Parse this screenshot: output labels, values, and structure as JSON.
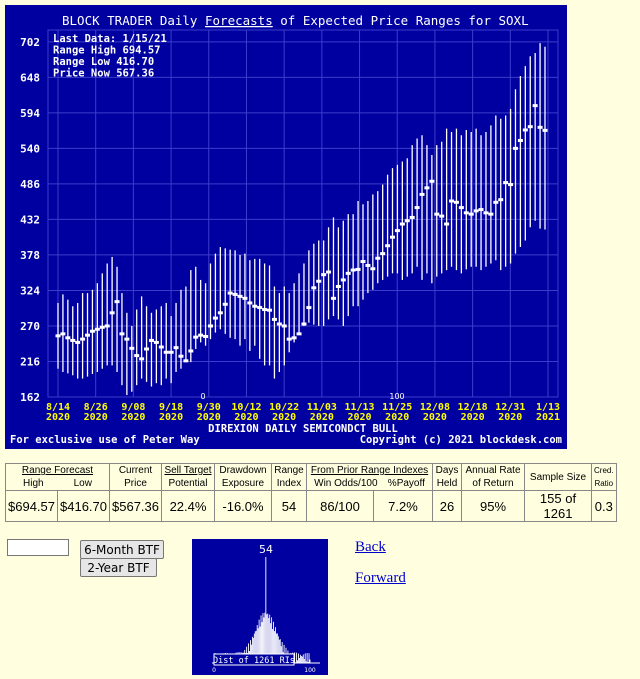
{
  "chart": {
    "title": "BLOCK TRADER Daily Forecasts of Expected Price Ranges for  SOXL",
    "title_prefix": "BLOCK TRADER Daily ",
    "title_link": "Forecasts",
    "title_suffix": " of Expected Price Ranges for  SOXL",
    "stats": [
      {
        "label": "Last Data:",
        "value": "1/15/21"
      },
      {
        "label": "Range High",
        "value": "694.57"
      },
      {
        "label": "Range Low ",
        "value": "416.70"
      },
      {
        "label": "Price Now ",
        "value": "567.36"
      }
    ],
    "subtitle": "DIREXION DAILY SEMICONDCT BULL",
    "footer_left": "For exclusive use of Peter Way",
    "footer_right": "Copyright (c) 2021 blockdesk.com",
    "marker_low": "0",
    "marker_high": "100",
    "colors": {
      "panel": "#0000a0",
      "text": "#ffffff",
      "grid": "#3c3ccc",
      "axis": "#ffff00"
    }
  },
  "chart_data": {
    "type": "range-bar",
    "ylim": [
      162,
      720
    ],
    "yticks": [
      162,
      216,
      270,
      324,
      378,
      432,
      486,
      540,
      594,
      648,
      702
    ],
    "x_tick_labels": [
      [
        "8/14",
        "2020"
      ],
      [
        "8/26",
        "2020"
      ],
      [
        "9/08",
        "2020"
      ],
      [
        "9/18",
        "2020"
      ],
      [
        "9/30",
        "2020"
      ],
      [
        "10/12",
        "2020"
      ],
      [
        "10/22",
        "2020"
      ],
      [
        "11/03",
        "2020"
      ],
      [
        "11/13",
        "2020"
      ],
      [
        "11/25",
        "2020"
      ],
      [
        "12/08",
        "2020"
      ],
      [
        "12/18",
        "2020"
      ],
      [
        "12/31",
        "2020"
      ],
      [
        "1/13",
        "2021"
      ]
    ],
    "series": [
      {
        "name": "Range High",
        "values": [
          305,
          318,
          310,
          300,
          305,
          320,
          320,
          325,
          335,
          350,
          365,
          375,
          360,
          320,
          290,
          270,
          295,
          315,
          300,
          290,
          295,
          300,
          305,
          285,
          305,
          325,
          330,
          355,
          360,
          340,
          335,
          365,
          380,
          390,
          388,
          386,
          385,
          378,
          380,
          370,
          372,
          372,
          365,
          362,
          330,
          320,
          330,
          320,
          335,
          350,
          365,
          385,
          395,
          400,
          400,
          420,
          435,
          420,
          430,
          440,
          440,
          460,
          455,
          460,
          470,
          475,
          485,
          500,
          510,
          515,
          520,
          525,
          545,
          555,
          560,
          545,
          530,
          545,
          550,
          570,
          565,
          570,
          560,
          568,
          565,
          570,
          560,
          565,
          575,
          590,
          585,
          590,
          600,
          630,
          650,
          665,
          680,
          685,
          700,
          694.57
        ]
      },
      {
        "name": "Range Low",
        "values": [
          205,
          200,
          198,
          195,
          190,
          190,
          193,
          197,
          200,
          205,
          210,
          210,
          200,
          180,
          165,
          170,
          180,
          190,
          185,
          178,
          183,
          180,
          190,
          183,
          200,
          205,
          215,
          215,
          235,
          245,
          240,
          250,
          260,
          265,
          258,
          252,
          250,
          240,
          250,
          232,
          240,
          220,
          210,
          210,
          190,
          200,
          210,
          230,
          245,
          260,
          270,
          275,
          272,
          270,
          270,
          280,
          285,
          280,
          270,
          285,
          300,
          300,
          310,
          320,
          325,
          335,
          340,
          345,
          350,
          350,
          340,
          345,
          350,
          360,
          340,
          350,
          335,
          345,
          350,
          355,
          360,
          355,
          350,
          356,
          360,
          360,
          355,
          360,
          365,
          370,
          355,
          360,
          365,
          380,
          390,
          400,
          420,
          430,
          418,
          416.7
        ]
      },
      {
        "name": "Price",
        "values": [
          255,
          258,
          252,
          248,
          245,
          250,
          256,
          262,
          265,
          268,
          270,
          290,
          307,
          258,
          250,
          236,
          225,
          220,
          235,
          248,
          245,
          238,
          230,
          230,
          237,
          224,
          217,
          232,
          253,
          256,
          254,
          270,
          282,
          290,
          303,
          320,
          318,
          315,
          312,
          305,
          300,
          298,
          295,
          294,
          280,
          273,
          270,
          250,
          252,
          258,
          273,
          298,
          328,
          338,
          348,
          352,
          312,
          330,
          340,
          350,
          355,
          356,
          368,
          362,
          357,
          373,
          380,
          392,
          405,
          415,
          425,
          430,
          435,
          450,
          470,
          480,
          490,
          440,
          437,
          425,
          460,
          458,
          450,
          442,
          440,
          445,
          447,
          442,
          440,
          458,
          462,
          488,
          485,
          540,
          552,
          568,
          573,
          605,
          572,
          567.36
        ]
      }
    ]
  },
  "table": {
    "headers": {
      "range_forecast": "Range Forecast",
      "high": "High",
      "low": "Low",
      "current_price": [
        "Current",
        "Price"
      ],
      "sell_target": [
        "Sell Target",
        "Potential"
      ],
      "drawdown": [
        "Drawdown",
        "Exposure"
      ],
      "range_index": [
        "Range",
        "Index"
      ],
      "prior_range": "From Prior Range Indexes",
      "win_odds": "Win Odds/100",
      "payoff": "%Payoff",
      "days_held": [
        "Days",
        "Held"
      ],
      "annual_rate": [
        "Annual Rate",
        "of Return"
      ],
      "sample_size": "Sample Size",
      "cred_ratio": [
        "Cred.",
        "Ratio"
      ]
    },
    "values": {
      "high": "$694.57",
      "low": "$416.70",
      "current_price": "$567.36",
      "sell_target": "22.4%",
      "drawdown": "-16.0%",
      "range_index": "54",
      "win_odds": "86/100",
      "payoff": "7.2%",
      "days_held": "26",
      "annual_rate": "95%",
      "sample_size": "155 of 1261",
      "cred_ratio": "0.3"
    }
  },
  "controls": {
    "input_value": "",
    "six_month_btn": "6-Month BTF",
    "two_year_btn": "2-Year BTF",
    "back_link": "Back",
    "forward_link": "Forward"
  },
  "histogram": {
    "value": "54",
    "label": "Dist of 1261 RIs",
    "axis_min": "0",
    "axis_max": "100"
  }
}
